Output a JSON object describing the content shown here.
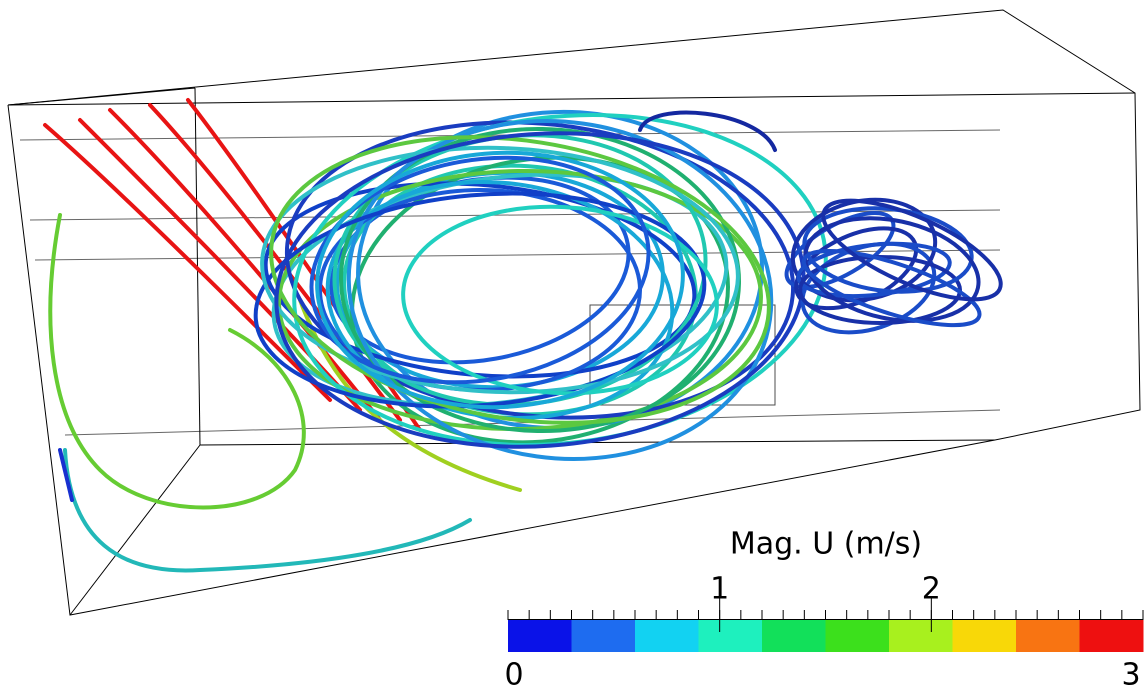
{
  "color_legend": {
    "title": "Mag. U (m/s)",
    "range": [
      0,
      3
    ],
    "ticks": [
      1,
      2
    ],
    "minor_tick_step": 0.1,
    "colors": [
      "#0a12e8",
      "#1e6cf0",
      "#12d2f2",
      "#1ef0be",
      "#12e05a",
      "#3ce01c",
      "#a8f01e",
      "#f8d808",
      "#f87412",
      "#ee1010"
    ]
  }
}
